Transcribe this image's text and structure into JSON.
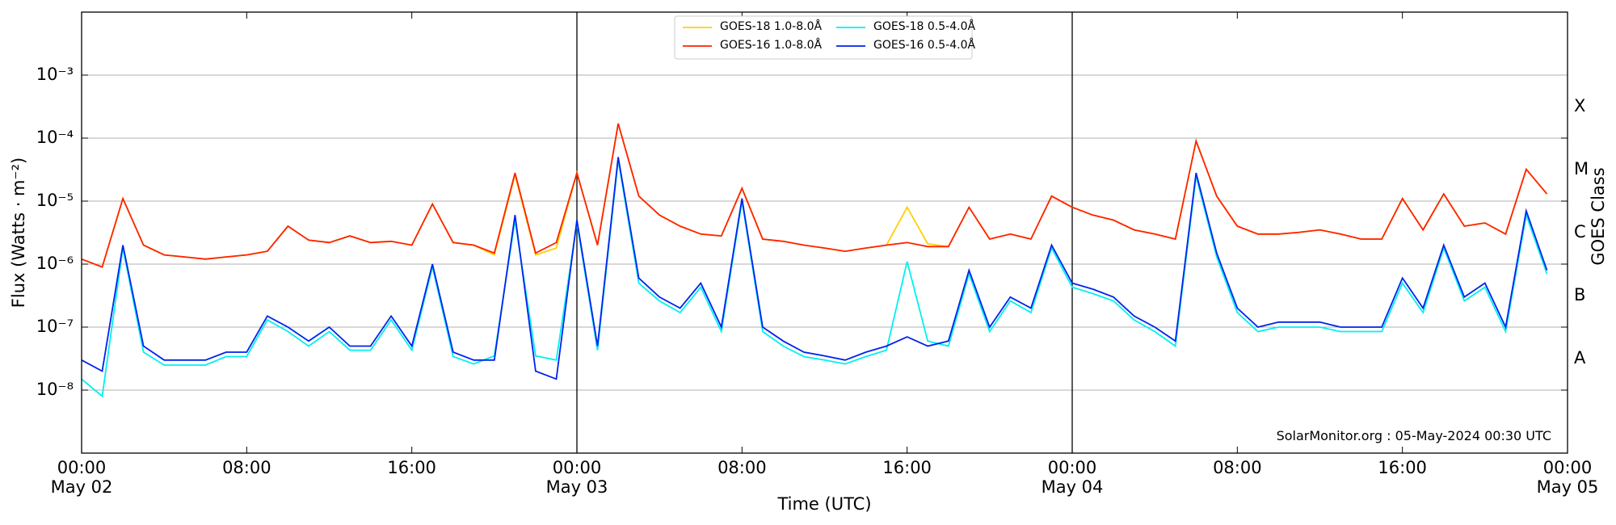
{
  "chart_data": {
    "type": "line",
    "yscale": "log",
    "grid": true,
    "xlabel": "Time (UTC)",
    "ylabel": "Flux (Watts · m⁻²)",
    "y2label": "GOES Class",
    "annotation": "SolarMonitor.org : 05-May-2024 00:30 UTC",
    "legend": "upper center",
    "xlim": [
      0,
      72
    ],
    "xticks": [
      {
        "value": 0,
        "label": "00:00\nMay 02"
      },
      {
        "value": 8,
        "label": "08:00"
      },
      {
        "value": 16,
        "label": "16:00"
      },
      {
        "value": 24,
        "label": "00:00\nMay 03"
      },
      {
        "value": 32,
        "label": "08:00"
      },
      {
        "value": 40,
        "label": "16:00"
      },
      {
        "value": 48,
        "label": "00:00\nMay 04"
      },
      {
        "value": 56,
        "label": "08:00"
      },
      {
        "value": 64,
        "label": "16:00"
      },
      {
        "value": 72,
        "label": "00:00\nMay 05"
      }
    ],
    "vlines": [
      24,
      48
    ],
    "ylim": [
      1e-09,
      0.01
    ],
    "yticks": [
      {
        "value": 1e-08,
        "label": "10⁻⁸"
      },
      {
        "value": 1e-07,
        "label": "10⁻⁷"
      },
      {
        "value": 1e-06,
        "label": "10⁻⁶"
      },
      {
        "value": 1e-05,
        "label": "10⁻⁵"
      },
      {
        "value": 0.0001,
        "label": "10⁻⁴"
      },
      {
        "value": 0.001,
        "label": "10⁻³"
      }
    ],
    "y2lim": [
      1e-09,
      0.01
    ],
    "y2ticks": [
      {
        "value": 1e-08,
        "label": "A"
      },
      {
        "value": 1e-07,
        "label": "B"
      },
      {
        "value": 1e-06,
        "label": "C"
      },
      {
        "value": 1e-05,
        "label": "M"
      },
      {
        "value": 0.0001,
        "label": "X"
      }
    ],
    "x": [
      0,
      1,
      2,
      3,
      4,
      5,
      6,
      7,
      8,
      9,
      10,
      11,
      12,
      13,
      14,
      15,
      16,
      17,
      18,
      19,
      20,
      21,
      22,
      23,
      24,
      25,
      26,
      27,
      28,
      29,
      30,
      31,
      32,
      33,
      34,
      35,
      36,
      37,
      38,
      39,
      40,
      41,
      42,
      43,
      44,
      45,
      46,
      47,
      48,
      49,
      50,
      51,
      52,
      53,
      54,
      55,
      56,
      57,
      58,
      59,
      60,
      61,
      62,
      63,
      64,
      65,
      66,
      67,
      68,
      69,
      70,
      71,
      72
    ],
    "series": [
      {
        "name": "GOES-18 1.0-8.0Å",
        "color": "#ffd000",
        "values": [
          1.2e-06,
          9e-07,
          1.1e-05,
          2e-06,
          1.4e-06,
          1.3e-06,
          1.2e-06,
          1.3e-06,
          1.4e-06,
          1.6e-06,
          4e-06,
          2.4e-06,
          2.2e-06,
          2.8e-06,
          2.2e-06,
          2.3e-06,
          2e-06,
          9e-06,
          2.2e-06,
          2e-06,
          1.4e-06,
          2.6e-05,
          1.4e-06,
          1.8e-06,
          2.8e-05,
          2e-06,
          0.00017,
          1.2e-05,
          6e-06,
          4e-06,
          3e-06,
          2.8e-06,
          1.6e-05,
          2.5e-06,
          2.3e-06,
          2e-06,
          1.8e-06,
          1.6e-06,
          1.8e-06,
          2e-06,
          8e-06,
          2.1e-06,
          1.9e-06,
          8e-06,
          2.5e-06,
          3e-06,
          2.5e-06,
          1.2e-05,
          8e-06,
          6e-06,
          5e-06,
          3.5e-06,
          3e-06,
          2.5e-06,
          9e-05,
          1.2e-05,
          4e-06,
          3e-06,
          3e-06,
          3.2e-06,
          3.5e-06,
          3e-06,
          2.5e-06,
          2.5e-06,
          1.1e-05,
          3.5e-06,
          1.3e-05,
          4e-06,
          4.5e-06,
          3e-06,
          3.2e-05,
          1.3e-05,
          null
        ]
      },
      {
        "name": "GOES-16 1.0-8.0Å",
        "color": "#ff2200",
        "values": [
          1.2e-06,
          9e-07,
          1.1e-05,
          2e-06,
          1.4e-06,
          1.3e-06,
          1.2e-06,
          1.3e-06,
          1.4e-06,
          1.6e-06,
          4e-06,
          2.4e-06,
          2.2e-06,
          2.8e-06,
          2.2e-06,
          2.3e-06,
          2e-06,
          9e-06,
          2.2e-06,
          2e-06,
          1.5e-06,
          2.8e-05,
          1.5e-06,
          2.2e-06,
          2.8e-05,
          2e-06,
          0.00017,
          1.2e-05,
          6e-06,
          4e-06,
          3e-06,
          2.8e-06,
          1.6e-05,
          2.5e-06,
          2.3e-06,
          2e-06,
          1.8e-06,
          1.6e-06,
          1.8e-06,
          2e-06,
          2.2e-06,
          1.9e-06,
          1.9e-06,
          8e-06,
          2.5e-06,
          3e-06,
          2.5e-06,
          1.2e-05,
          8e-06,
          6e-06,
          5e-06,
          3.5e-06,
          3e-06,
          2.5e-06,
          9e-05,
          1.2e-05,
          4e-06,
          3e-06,
          3e-06,
          3.2e-06,
          3.5e-06,
          3e-06,
          2.5e-06,
          2.5e-06,
          1.1e-05,
          3.5e-06,
          1.3e-05,
          4e-06,
          4.5e-06,
          3e-06,
          3.2e-05,
          1.3e-05,
          null
        ]
      },
      {
        "name": "GOES-18 0.5-4.0Å",
        "color": "#00f0f0",
        "values": [
          1.5e-08,
          8e-09,
          1.8e-06,
          4e-08,
          2.5e-08,
          2.5e-08,
          2.5e-08,
          3.4e-08,
          3.4e-08,
          1.3e-07,
          8.5e-08,
          5e-08,
          8.5e-08,
          4.3e-08,
          4.3e-08,
          1.3e-07,
          4.3e-08,
          9e-07,
          3.4e-08,
          2.6e-08,
          3.5e-08,
          5e-06,
          3.5e-08,
          3e-08,
          4.5e-06,
          4.3e-08,
          4.5e-05,
          5e-07,
          2.6e-07,
          1.7e-07,
          4.3e-07,
          8.5e-08,
          1e-05,
          8.5e-08,
          5e-08,
          3.4e-08,
          3e-08,
          2.6e-08,
          3.4e-08,
          4.3e-08,
          1.1e-06,
          6e-08,
          5e-08,
          7e-07,
          8.5e-08,
          2.6e-07,
          1.7e-07,
          1.8e-06,
          4.3e-07,
          3.4e-07,
          2.6e-07,
          1.3e-07,
          8.5e-08,
          5e-08,
          2.5e-05,
          1.3e-06,
          1.7e-07,
          8.5e-08,
          1e-07,
          1e-07,
          1e-07,
          8.5e-08,
          8.5e-08,
          8.5e-08,
          5e-07,
          1.7e-07,
          1.8e-06,
          2.6e-07,
          4.3e-07,
          8.5e-08,
          6e-06,
          7e-07,
          null
        ]
      },
      {
        "name": "GOES-16 0.5-4.0Å",
        "color": "#0022ee",
        "values": [
          3e-08,
          2e-08,
          2e-06,
          5e-08,
          3e-08,
          3e-08,
          3e-08,
          4e-08,
          4e-08,
          1.5e-07,
          1e-07,
          6e-08,
          1e-07,
          5e-08,
          5e-08,
          1.5e-07,
          5e-08,
          1e-06,
          4e-08,
          3e-08,
          3e-08,
          6e-06,
          2e-08,
          1.5e-08,
          5e-06,
          5e-08,
          5e-05,
          6e-07,
          3e-07,
          2e-07,
          5e-07,
          1e-07,
          1.1e-05,
          1e-07,
          6e-08,
          4e-08,
          3.5e-08,
          3e-08,
          4e-08,
          5e-08,
          7e-08,
          5e-08,
          6e-08,
          8e-07,
          1e-07,
          3e-07,
          2e-07,
          2e-06,
          5e-07,
          4e-07,
          3e-07,
          1.5e-07,
          1e-07,
          6e-08,
          2.8e-05,
          1.5e-06,
          2e-07,
          1e-07,
          1.2e-07,
          1.2e-07,
          1.2e-07,
          1e-07,
          1e-07,
          1e-07,
          6e-07,
          2e-07,
          2e-06,
          3e-07,
          5e-07,
          1e-07,
          7e-06,
          8e-07,
          null
        ]
      }
    ]
  }
}
